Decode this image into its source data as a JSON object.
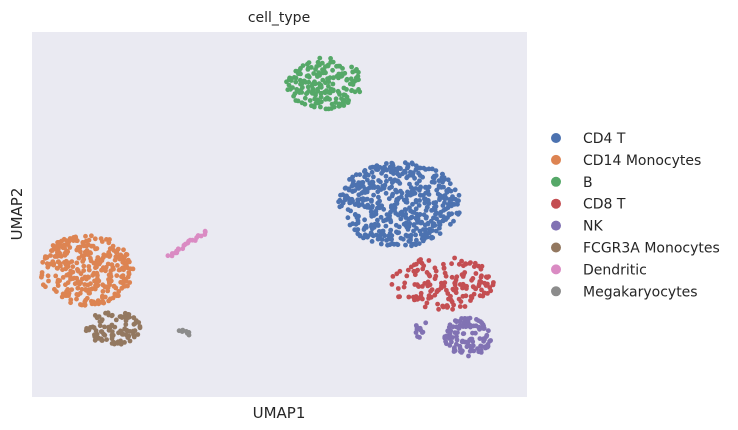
{
  "chart_data": {
    "type": "scatter",
    "title": "cell_type",
    "xlabel": "UMAP1",
    "ylabel": "UMAP2",
    "xlim": [
      -5,
      16
    ],
    "ylim": [
      -4,
      13
    ],
    "grid": false,
    "axis_ticks": "none",
    "background": "#EAEAF2",
    "legend_position": "right",
    "series": [
      {
        "name": "CD4 T",
        "color": "#4C72B0",
        "clusters": [
          {
            "cx": 10.6,
            "cy": 5.0,
            "rx": 2.6,
            "ry": 2.0,
            "n": 520
          }
        ]
      },
      {
        "name": "CD14 Monocytes",
        "color": "#DD8452",
        "clusters": [
          {
            "cx": -2.7,
            "cy": 1.9,
            "rx": 2.0,
            "ry": 1.65,
            "n": 330
          }
        ]
      },
      {
        "name": "B",
        "color": "#55A868",
        "clusters": [
          {
            "cx": 7.4,
            "cy": 10.6,
            "rx": 1.65,
            "ry": 1.2,
            "n": 190
          }
        ]
      },
      {
        "name": "CD8 T",
        "color": "#C44E52",
        "clusters": [
          {
            "cx": 12.4,
            "cy": 1.3,
            "rx": 2.2,
            "ry": 1.25,
            "n": 160
          }
        ]
      },
      {
        "name": "NK",
        "color": "#8172B3",
        "clusters": [
          {
            "cx": 13.5,
            "cy": -1.2,
            "rx": 1.0,
            "ry": 0.9,
            "n": 110
          },
          {
            "cx": 11.5,
            "cy": -0.8,
            "rx": 0.25,
            "ry": 0.5,
            "n": 12
          }
        ]
      },
      {
        "name": "FCGR3A Monocytes",
        "color": "#937860",
        "clusters": [
          {
            "cx": -1.6,
            "cy": -0.8,
            "rx": 1.2,
            "ry": 0.8,
            "n": 95
          }
        ]
      },
      {
        "name": "Dendritic",
        "color": "#DA8BC3",
        "line": {
          "x0": 0.8,
          "y0": 2.6,
          "x1": 2.4,
          "y1": 3.7,
          "n": 24
        }
      },
      {
        "name": "Megakaryocytes",
        "color": "#8C8C8C",
        "line": {
          "x0": 1.3,
          "y0": -0.9,
          "x1": 1.7,
          "y1": -1.1,
          "n": 7
        }
      }
    ]
  }
}
